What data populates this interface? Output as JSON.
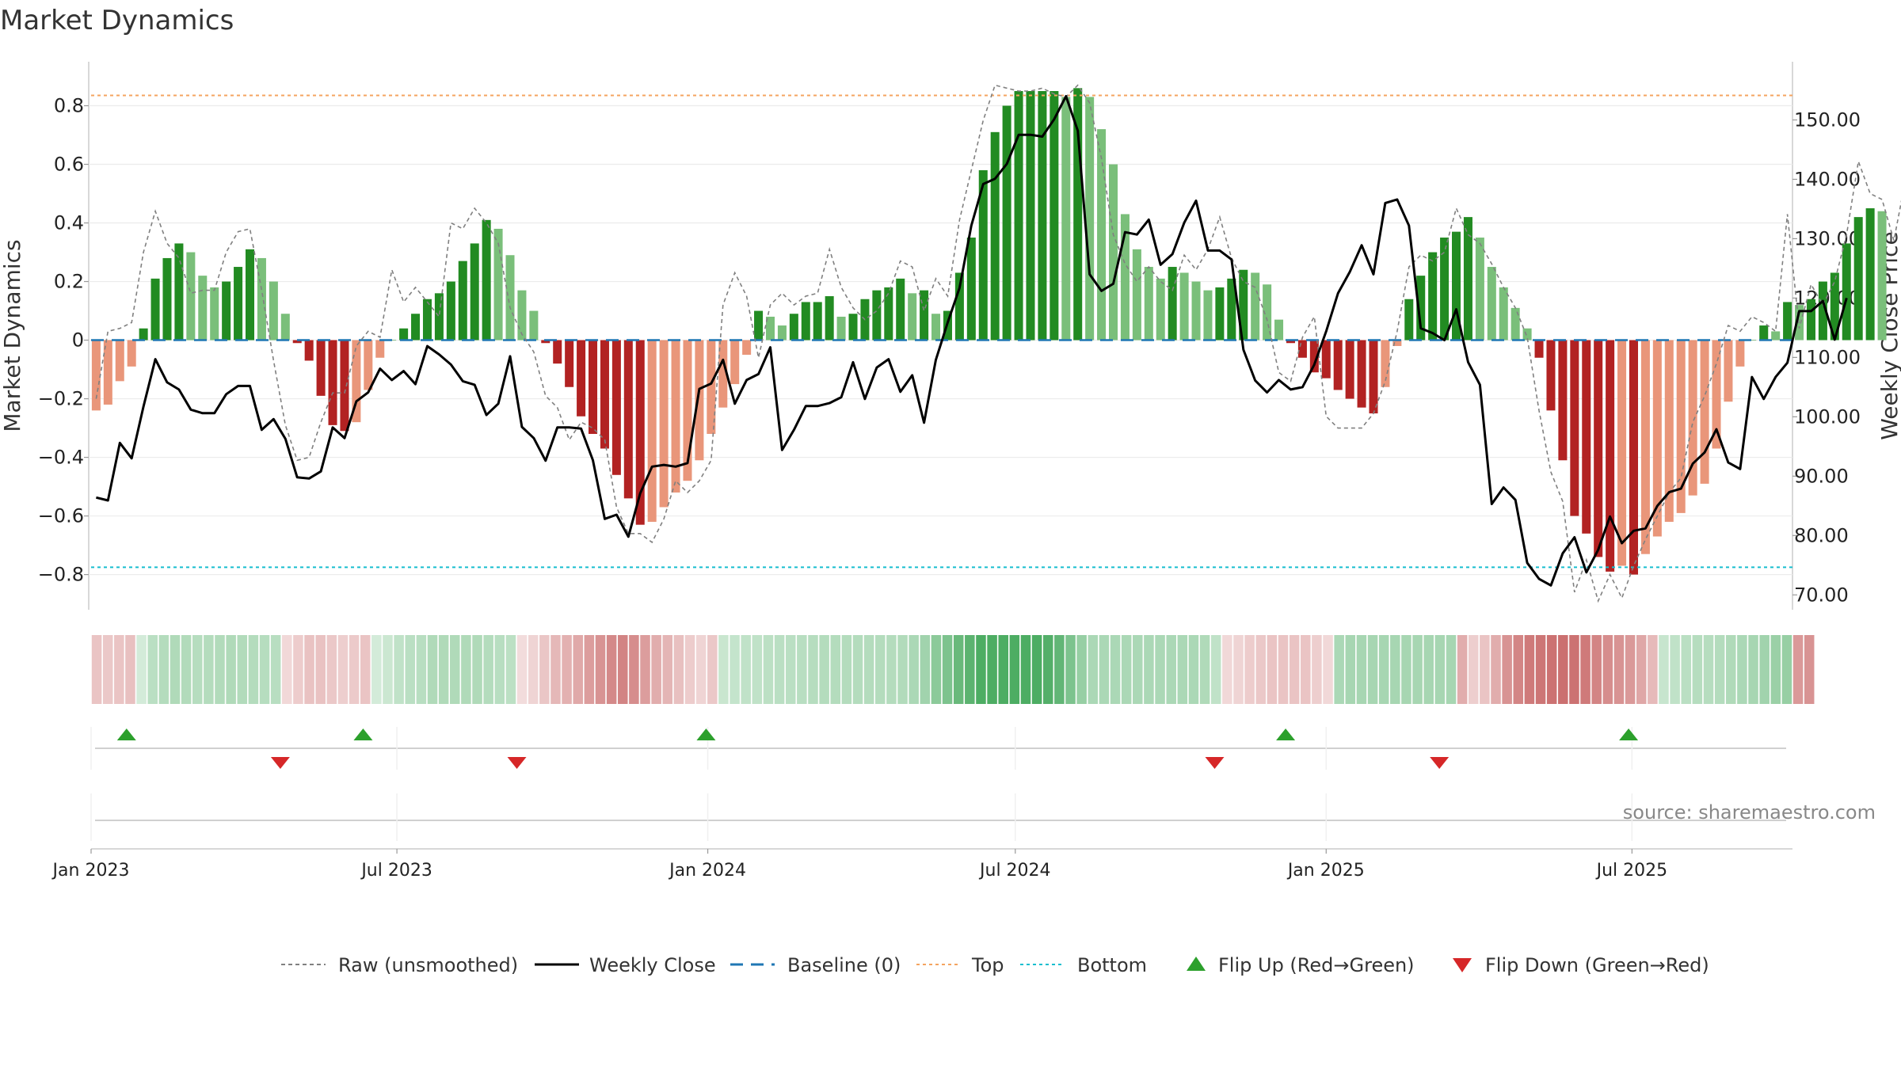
{
  "chart_data": {
    "type": "bar",
    "title": "Market Dynamics",
    "ylabel_left": "Market Dynamics",
    "ylabel_right": "Weekly Close Price",
    "ylim_left": [
      -0.92,
      0.95
    ],
    "ylim_right": [
      67.5,
      159.8
    ],
    "yticks_left": [
      "0.8",
      "0.6",
      "0.4",
      "0.2",
      "0",
      "−0.2",
      "−0.4",
      "−0.6",
      "−0.8"
    ],
    "yticks_right": [
      "150.00",
      "140.00",
      "130.00",
      "120.00",
      "110.00",
      "100.00",
      "90.00",
      "80.00",
      "70.00"
    ],
    "x_start": "2023-01-01",
    "x_end": "2025-10-04",
    "x_tick_labels": [
      {
        "date": "2023-01-01",
        "label": "Jan 2023"
      },
      {
        "date": "2023-07-01",
        "label": "Jul 2023"
      },
      {
        "date": "2024-01-01",
        "label": "Jan 2024"
      },
      {
        "date": "2024-07-01",
        "label": "Jul 2024"
      },
      {
        "date": "2025-01-01",
        "label": "Jan 2025"
      },
      {
        "date": "2025-07-01",
        "label": "Jul 2025"
      }
    ],
    "top_level": 0.835,
    "bottom_level": -0.775,
    "baseline": 0,
    "series": [
      {
        "name": "Market Dynamics",
        "values": [
          -0.24,
          -0.22,
          -0.14,
          -0.09,
          0.04,
          0.21,
          0.28,
          0.33,
          0.3,
          0.22,
          0.18,
          0.2,
          0.25,
          0.31,
          0.28,
          0.2,
          0.09,
          -0.01,
          -0.07,
          -0.19,
          -0.29,
          -0.31,
          -0.28,
          -0.17,
          -0.06,
          0.0,
          0.04,
          0.09,
          0.14,
          0.16,
          0.2,
          0.27,
          0.33,
          0.41,
          0.38,
          0.29,
          0.17,
          0.1,
          -0.01,
          -0.08,
          -0.16,
          -0.26,
          -0.32,
          -0.37,
          -0.46,
          -0.54,
          -0.63,
          -0.62,
          -0.57,
          -0.52,
          -0.48,
          -0.41,
          -0.32,
          -0.23,
          -0.15,
          -0.05,
          0.1,
          0.08,
          0.05,
          0.09,
          0.13,
          0.13,
          0.15,
          0.08,
          0.09,
          0.14,
          0.17,
          0.18,
          0.21,
          0.16,
          0.17,
          0.09,
          0.1,
          0.23,
          0.35,
          0.58,
          0.71,
          0.8,
          0.85,
          0.85,
          0.85,
          0.85,
          0.83,
          0.86,
          0.83,
          0.72,
          0.6,
          0.43,
          0.31,
          0.25,
          0.21,
          0.25,
          0.23,
          0.2,
          0.17,
          0.18,
          0.21,
          0.24,
          0.23,
          0.19,
          0.07,
          -0.01,
          -0.06,
          -0.11,
          -0.13,
          -0.17,
          -0.2,
          -0.23,
          -0.25,
          -0.16,
          -0.02,
          0.14,
          0.22,
          0.3,
          0.35,
          0.37,
          0.42,
          0.35,
          0.25,
          0.18,
          0.11,
          0.04,
          -0.06,
          -0.24,
          -0.41,
          -0.6,
          -0.66,
          -0.74,
          -0.79,
          -0.77,
          -0.8,
          -0.73,
          -0.67,
          -0.62,
          -0.59,
          -0.53,
          -0.49,
          -0.37,
          -0.21,
          -0.09,
          0.0,
          0.05,
          0.03,
          0.13,
          0.12,
          0.14,
          0.2,
          0.23,
          0.33,
          0.42,
          0.45,
          0.44
        ]
      },
      {
        "name": "Raw (unsmoothed)",
        "values": [
          -0.2,
          0.03,
          0.04,
          0.06,
          0.3,
          0.44,
          0.33,
          0.28,
          0.16,
          0.17,
          0.17,
          0.3,
          0.37,
          0.38,
          0.17,
          -0.07,
          -0.29,
          -0.41,
          -0.4,
          -0.28,
          -0.18,
          -0.18,
          -0.02,
          0.03,
          0.01,
          0.24,
          0.13,
          0.18,
          0.13,
          0.08,
          0.4,
          0.38,
          0.45,
          0.4,
          0.33,
          0.11,
          0.02,
          -0.04,
          -0.19,
          -0.23,
          -0.34,
          -0.28,
          -0.3,
          -0.34,
          -0.57,
          -0.66,
          -0.66,
          -0.69,
          -0.61,
          -0.48,
          -0.52,
          -0.48,
          -0.41,
          0.12,
          0.23,
          0.15,
          -0.06,
          0.12,
          0.16,
          0.12,
          0.15,
          0.16,
          0.31,
          0.18,
          0.11,
          0.07,
          0.1,
          0.16,
          0.27,
          0.25,
          0.1,
          0.21,
          0.15,
          0.41,
          0.58,
          0.75,
          0.87,
          0.86,
          0.85,
          0.85,
          0.86,
          0.84,
          0.83,
          0.87,
          0.81,
          0.62,
          0.36,
          0.26,
          0.2,
          0.25,
          0.2,
          0.17,
          0.29,
          0.24,
          0.31,
          0.42,
          0.28,
          0.2,
          0.18,
          0.07,
          -0.11,
          -0.14,
          0.01,
          0.08,
          -0.26,
          -0.3,
          -0.3,
          -0.3,
          -0.25,
          -0.14,
          0.03,
          0.25,
          0.29,
          0.27,
          0.3,
          0.45,
          0.36,
          0.33,
          0.26,
          0.18,
          0.11,
          0.01,
          -0.24,
          -0.45,
          -0.55,
          -0.86,
          -0.75,
          -0.89,
          -0.8,
          -0.88,
          -0.77,
          -0.68,
          -0.6,
          -0.52,
          -0.47,
          -0.28,
          -0.19,
          -0.08,
          0.05,
          0.03,
          0.08,
          0.06,
          0.03,
          0.43,
          0.04,
          0.19,
          0.12,
          0.2,
          0.36,
          0.61,
          0.5,
          0.48,
          0.34,
          0.55
        ]
      },
      {
        "name": "Weekly Close",
        "values": [
          86.4,
          85.9,
          95.6,
          93.0,
          101.7,
          109.7,
          105.8,
          104.6,
          101.2,
          100.6,
          100.6,
          103.8,
          105.2,
          105.2,
          97.8,
          99.6,
          96.3,
          89.8,
          89.6,
          90.8,
          98.2,
          96.4,
          102.6,
          104.1,
          108.1,
          106.2,
          107.7,
          105.5,
          111.9,
          110.5,
          108.8,
          106.0,
          105.4,
          100.3,
          102.2,
          110.2,
          98.3,
          96.4,
          92.6,
          98.2,
          98.2,
          98.0,
          92.7,
          82.8,
          83.5,
          79.8,
          87.1,
          91.6,
          91.9,
          91.6,
          92.2,
          104.7,
          105.6,
          109.6,
          102.2,
          106.2,
          107.2,
          111.7,
          94.4,
          97.8,
          101.8,
          101.8,
          102.3,
          103.3,
          109.2,
          103.0,
          108.3,
          109.7,
          104.2,
          107.0,
          99.0,
          109.6,
          115.9,
          121.7,
          132.2,
          139.2,
          140.1,
          142.6,
          147.5,
          147.5,
          147.2,
          150.1,
          154.0,
          148.2,
          124.0,
          121.2,
          122.4,
          131.1,
          130.7,
          133.2,
          125.6,
          127.4,
          132.7,
          136.4,
          128.0,
          128.0,
          126.5,
          111.3,
          106.1,
          104.1,
          106.2,
          104.6,
          105.0,
          108.8,
          114.4,
          120.8,
          124.4,
          128.9,
          124.0,
          136.0,
          136.6,
          132.2,
          114.9,
          114.1,
          112.9,
          118.1,
          109.2,
          105.4,
          85.3,
          88.1,
          86.0,
          75.4,
          72.7,
          71.6,
          77.0,
          79.7,
          73.8,
          77.6,
          83.2,
          78.7,
          80.8,
          81.2,
          85.0,
          87.3,
          87.9,
          92.1,
          94.0,
          97.9,
          92.3,
          91.2,
          106.7,
          103.0,
          106.7,
          109.1,
          117.8,
          117.8,
          119.5,
          113.0,
          120.0
        ]
      }
    ],
    "heat_strip": {
      "values": [
        0.3,
        0.28,
        0.3,
        0.32,
        0.21,
        0.33,
        0.36,
        0.38,
        0.37,
        0.35,
        0.36,
        0.37,
        0.38,
        0.37,
        0.36,
        0.35,
        0.34,
        0.2,
        0.26,
        0.31,
        0.31,
        0.28,
        0.25,
        0.27,
        0.3,
        0.21,
        0.25,
        0.3,
        0.33,
        0.34,
        0.38,
        0.38,
        0.38,
        0.38,
        0.38,
        0.36,
        0.34,
        0.32,
        0.18,
        0.22,
        0.29,
        0.36,
        0.4,
        0.44,
        0.5,
        0.55,
        0.6,
        0.63,
        0.58,
        0.5,
        0.42,
        0.38,
        0.32,
        0.26,
        0.22,
        0.28,
        0.26,
        0.28,
        0.3,
        0.3,
        0.32,
        0.33,
        0.33,
        0.34,
        0.35,
        0.36,
        0.36,
        0.36,
        0.36,
        0.36,
        0.36,
        0.36,
        0.37,
        0.4,
        0.45,
        0.55,
        0.62,
        0.72,
        0.78,
        0.85,
        0.85,
        0.85,
        0.85,
        0.85,
        0.85,
        0.82,
        0.75,
        0.62,
        0.5,
        0.4,
        0.4,
        0.4,
        0.4,
        0.4,
        0.4,
        0.4,
        0.4,
        0.4,
        0.4,
        0.38,
        0.3,
        0.2,
        0.22,
        0.26,
        0.28,
        0.3,
        0.3,
        0.3,
        0.3,
        0.25,
        0.2,
        0.4,
        0.42,
        0.42,
        0.42,
        0.42,
        0.42,
        0.42,
        0.42,
        0.42,
        0.42,
        0.42,
        0.42,
        0.25,
        0.3,
        0.42,
        0.55,
        0.62,
        0.68,
        0.7,
        0.72,
        0.73,
        0.72,
        0.68,
        0.62,
        0.58,
        0.55,
        0.52,
        0.45,
        0.35,
        0.27,
        0.3,
        0.33,
        0.35,
        0.35,
        0.36,
        0.38,
        0.4,
        0.42,
        0.45,
        0.48,
        0.5,
        0.52,
        0.55
      ]
    },
    "flips_up": [
      "2023-01-22",
      "2023-06-11",
      "2023-12-31",
      "2024-12-08",
      "2025-06-29"
    ],
    "flips_down": [
      "2023-04-23",
      "2023-09-10",
      "2024-10-27",
      "2025-03-09"
    ],
    "colors": {
      "strong_green": "#228B22",
      "light_green": "#7ABF7A",
      "strong_red": "#B22222",
      "light_red": "#E9967A",
      "price_line": "#000000",
      "raw_line": "#808080",
      "baseline": "#1F77B4",
      "top": "#F4A460",
      "bottom": "#17BECF",
      "flip_up": "#2CA02C",
      "flip_down": "#D62728"
    },
    "legend": [
      {
        "label": "Raw (unsmoothed)",
        "icon": "dashed-gray-line"
      },
      {
        "label": "Weekly Close",
        "icon": "solid-black-line"
      },
      {
        "label": "Baseline (0)",
        "icon": "dashed-blue-line"
      },
      {
        "label": "Top",
        "icon": "dotted-orange-line"
      },
      {
        "label": "Bottom",
        "icon": "dotted-cyan-line"
      },
      {
        "label": "Flip Up (Red→Green)",
        "icon": "green-triangle-up-icon"
      },
      {
        "label": "Flip Down (Green→Red)",
        "icon": "red-triangle-down-icon"
      }
    ],
    "source": "source: sharemaestro.com"
  }
}
